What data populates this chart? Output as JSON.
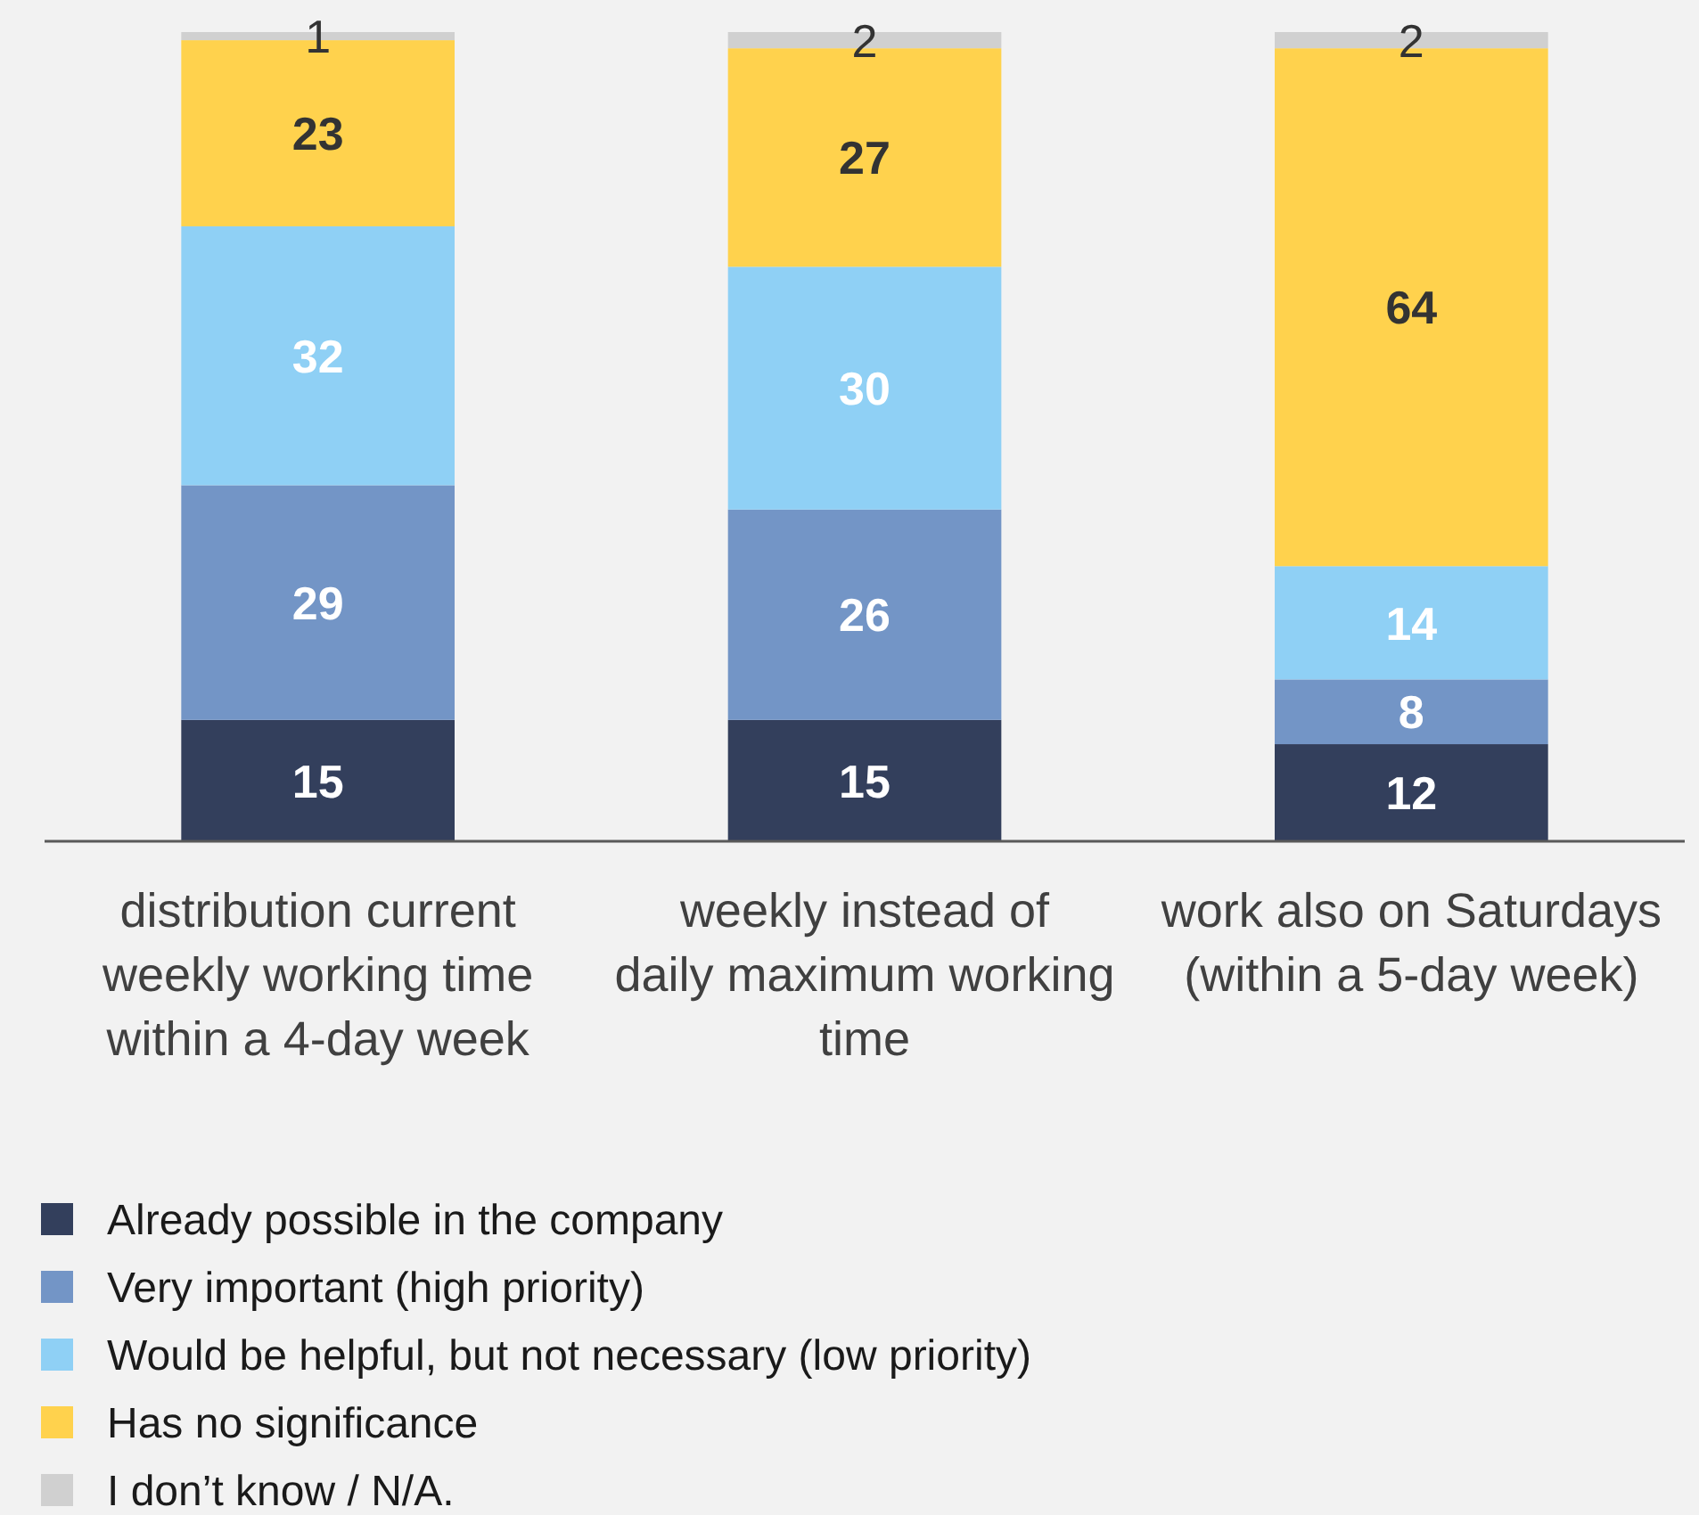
{
  "chart_data": {
    "type": "bar",
    "stacked": true,
    "data_labels": true,
    "legend": "bottom left",
    "categories": [
      "distribution current weekly working time within a 4-day week",
      "weekly instead of daily maximum working time",
      "work also on Saturdays (within a 5-day week)"
    ],
    "series": [
      {
        "name": "Already possible in the company",
        "color": "#333f5c",
        "values": [
          15,
          15,
          12
        ]
      },
      {
        "name": "Very important (high priority)",
        "color": "#7395c6",
        "values": [
          29,
          26,
          8
        ]
      },
      {
        "name": "Would be helpful, but not necessary (low priority)",
        "color": "#8fd0f5",
        "values": [
          32,
          30,
          14
        ]
      },
      {
        "name": "Has no significance",
        "color": "#ffd24d",
        "values": [
          23,
          27,
          64
        ]
      },
      {
        "name": "I don’t know / N/A.",
        "color": "#d0d0d0",
        "values": [
          1,
          2,
          2
        ]
      }
    ]
  }
}
